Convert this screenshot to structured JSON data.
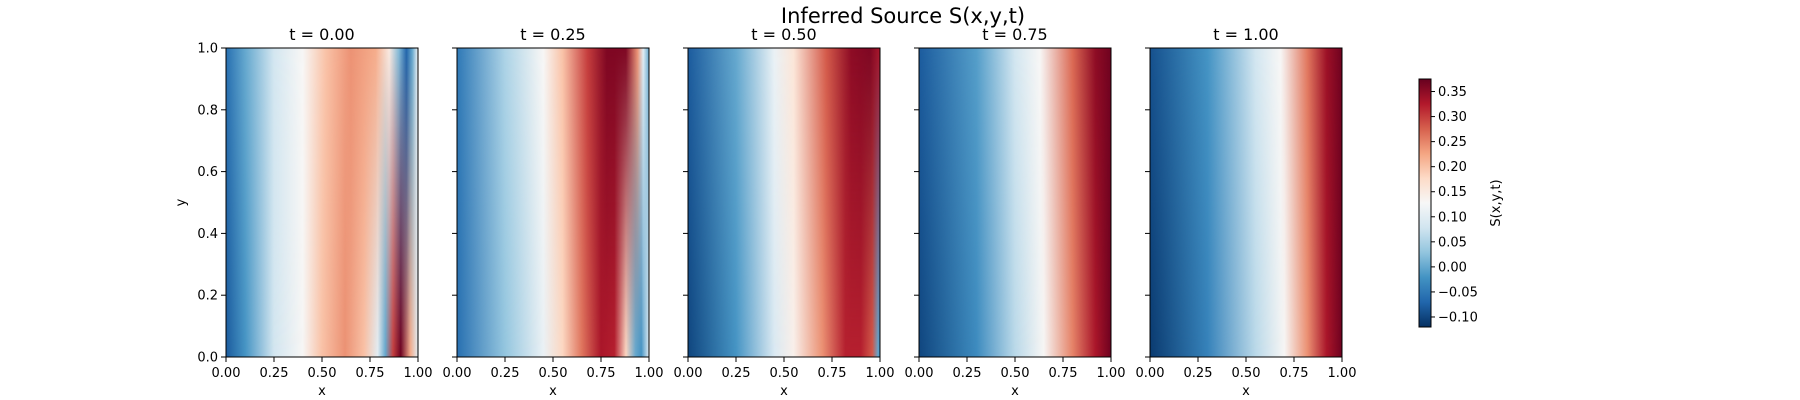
{
  "chart_data": {
    "type": "heatmap",
    "title": "Inferred Source S(x,y,t)",
    "panels": [
      {
        "title": "t = 0.00",
        "t": 0.0,
        "xlabel": "x",
        "ylabel": "y",
        "profile_at_y0": [
          [
            0.0,
            -0.08
          ],
          [
            0.1,
            -0.02
          ],
          [
            0.25,
            0.08
          ],
          [
            0.4,
            0.13
          ],
          [
            0.5,
            0.2
          ],
          [
            0.62,
            0.24
          ],
          [
            0.72,
            0.2
          ],
          [
            0.79,
            0.1
          ],
          [
            0.83,
            0.0
          ],
          [
            0.87,
            0.3
          ],
          [
            0.91,
            0.37
          ],
          [
            0.96,
            0.22
          ],
          [
            1.0,
            0.1
          ]
        ],
        "profile_at_y1": [
          [
            0.0,
            -0.06
          ],
          [
            0.1,
            0.0
          ],
          [
            0.25,
            0.08
          ],
          [
            0.4,
            0.13
          ],
          [
            0.52,
            0.2
          ],
          [
            0.65,
            0.24
          ],
          [
            0.78,
            0.22
          ],
          [
            0.85,
            0.15
          ],
          [
            0.9,
            0.02
          ],
          [
            0.94,
            -0.07
          ],
          [
            0.97,
            0.0
          ],
          [
            1.0,
            0.12
          ]
        ]
      },
      {
        "title": "t = 0.25",
        "t": 0.25,
        "xlabel": "x",
        "ylabel": "",
        "profile_at_y0": [
          [
            0.0,
            -0.06
          ],
          [
            0.25,
            0.03
          ],
          [
            0.45,
            0.11
          ],
          [
            0.55,
            0.18
          ],
          [
            0.65,
            0.26
          ],
          [
            0.75,
            0.33
          ],
          [
            0.82,
            0.32
          ],
          [
            0.88,
            0.18
          ],
          [
            0.93,
            0.0
          ],
          [
            0.96,
            -0.02
          ],
          [
            1.0,
            0.1
          ]
        ],
        "profile_at_y1": [
          [
            0.0,
            -0.05
          ],
          [
            0.25,
            0.05
          ],
          [
            0.45,
            0.13
          ],
          [
            0.55,
            0.2
          ],
          [
            0.68,
            0.3
          ],
          [
            0.78,
            0.36
          ],
          [
            0.88,
            0.36
          ],
          [
            0.94,
            0.24
          ],
          [
            0.97,
            0.1
          ],
          [
            1.0,
            0.0
          ]
        ]
      },
      {
        "title": "t = 0.50",
        "t": 0.5,
        "xlabel": "x",
        "ylabel": "",
        "profile_at_y0": [
          [
            0.0,
            -0.1
          ],
          [
            0.25,
            -0.02
          ],
          [
            0.45,
            0.09
          ],
          [
            0.55,
            0.14
          ],
          [
            0.7,
            0.24
          ],
          [
            0.82,
            0.32
          ],
          [
            0.9,
            0.32
          ],
          [
            0.96,
            0.28
          ],
          [
            0.99,
            0.0
          ],
          [
            1.0,
            -0.02
          ]
        ],
        "profile_at_y1": [
          [
            0.0,
            -0.08
          ],
          [
            0.25,
            0.0
          ],
          [
            0.45,
            0.11
          ],
          [
            0.55,
            0.16
          ],
          [
            0.72,
            0.28
          ],
          [
            0.85,
            0.35
          ],
          [
            0.95,
            0.36
          ],
          [
            1.0,
            0.33
          ]
        ]
      },
      {
        "title": "t = 0.75",
        "t": 0.75,
        "xlabel": "x",
        "ylabel": "",
        "profile_at_y0": [
          [
            0.0,
            -0.1
          ],
          [
            0.3,
            -0.03
          ],
          [
            0.5,
            0.06
          ],
          [
            0.65,
            0.13
          ],
          [
            0.8,
            0.25
          ],
          [
            0.92,
            0.33
          ],
          [
            1.0,
            0.37
          ]
        ],
        "profile_at_y1": [
          [
            0.0,
            -0.08
          ],
          [
            0.3,
            -0.01
          ],
          [
            0.5,
            0.08
          ],
          [
            0.63,
            0.13
          ],
          [
            0.8,
            0.27
          ],
          [
            0.92,
            0.35
          ],
          [
            1.0,
            0.37
          ]
        ]
      },
      {
        "title": "t = 1.00",
        "t": 1.0,
        "xlabel": "x",
        "ylabel": "",
        "profile_at_y0": [
          [
            0.0,
            -0.11
          ],
          [
            0.3,
            -0.04
          ],
          [
            0.55,
            0.06
          ],
          [
            0.7,
            0.13
          ],
          [
            0.82,
            0.24
          ],
          [
            0.92,
            0.33
          ],
          [
            1.0,
            0.37
          ]
        ],
        "profile_at_y1": [
          [
            0.0,
            -0.09
          ],
          [
            0.3,
            -0.02
          ],
          [
            0.55,
            0.08
          ],
          [
            0.68,
            0.13
          ],
          [
            0.82,
            0.26
          ],
          [
            0.92,
            0.34
          ],
          [
            1.0,
            0.37
          ]
        ]
      }
    ],
    "x_range": [
      0,
      1
    ],
    "y_range": [
      0,
      1
    ],
    "x_ticks": [
      "0.00",
      "0.25",
      "0.50",
      "0.75",
      "1.00"
    ],
    "y_ticks": [
      "0.0",
      "0.2",
      "0.4",
      "0.6",
      "0.8",
      "1.0"
    ],
    "colorbar": {
      "label": "S(x,y,t)",
      "colormap": "RdBu_r",
      "range": [
        -0.12,
        0.375
      ],
      "ticks": [
        "-0.10",
        "-0.05",
        "0.00",
        "0.05",
        "0.10",
        "0.15",
        "0.20",
        "0.25",
        "0.30",
        "0.35"
      ],
      "tick_values": [
        -0.1,
        -0.05,
        0.0,
        0.05,
        0.1,
        0.15,
        0.2,
        0.25,
        0.3,
        0.35
      ]
    },
    "grid": false
  },
  "colormap_stops": [
    "#053061",
    "#2166ac",
    "#4393c3",
    "#92c5de",
    "#d1e5f0",
    "#f7f7f7",
    "#fddbc7",
    "#f4a582",
    "#d6604d",
    "#b2182b",
    "#67001f"
  ]
}
